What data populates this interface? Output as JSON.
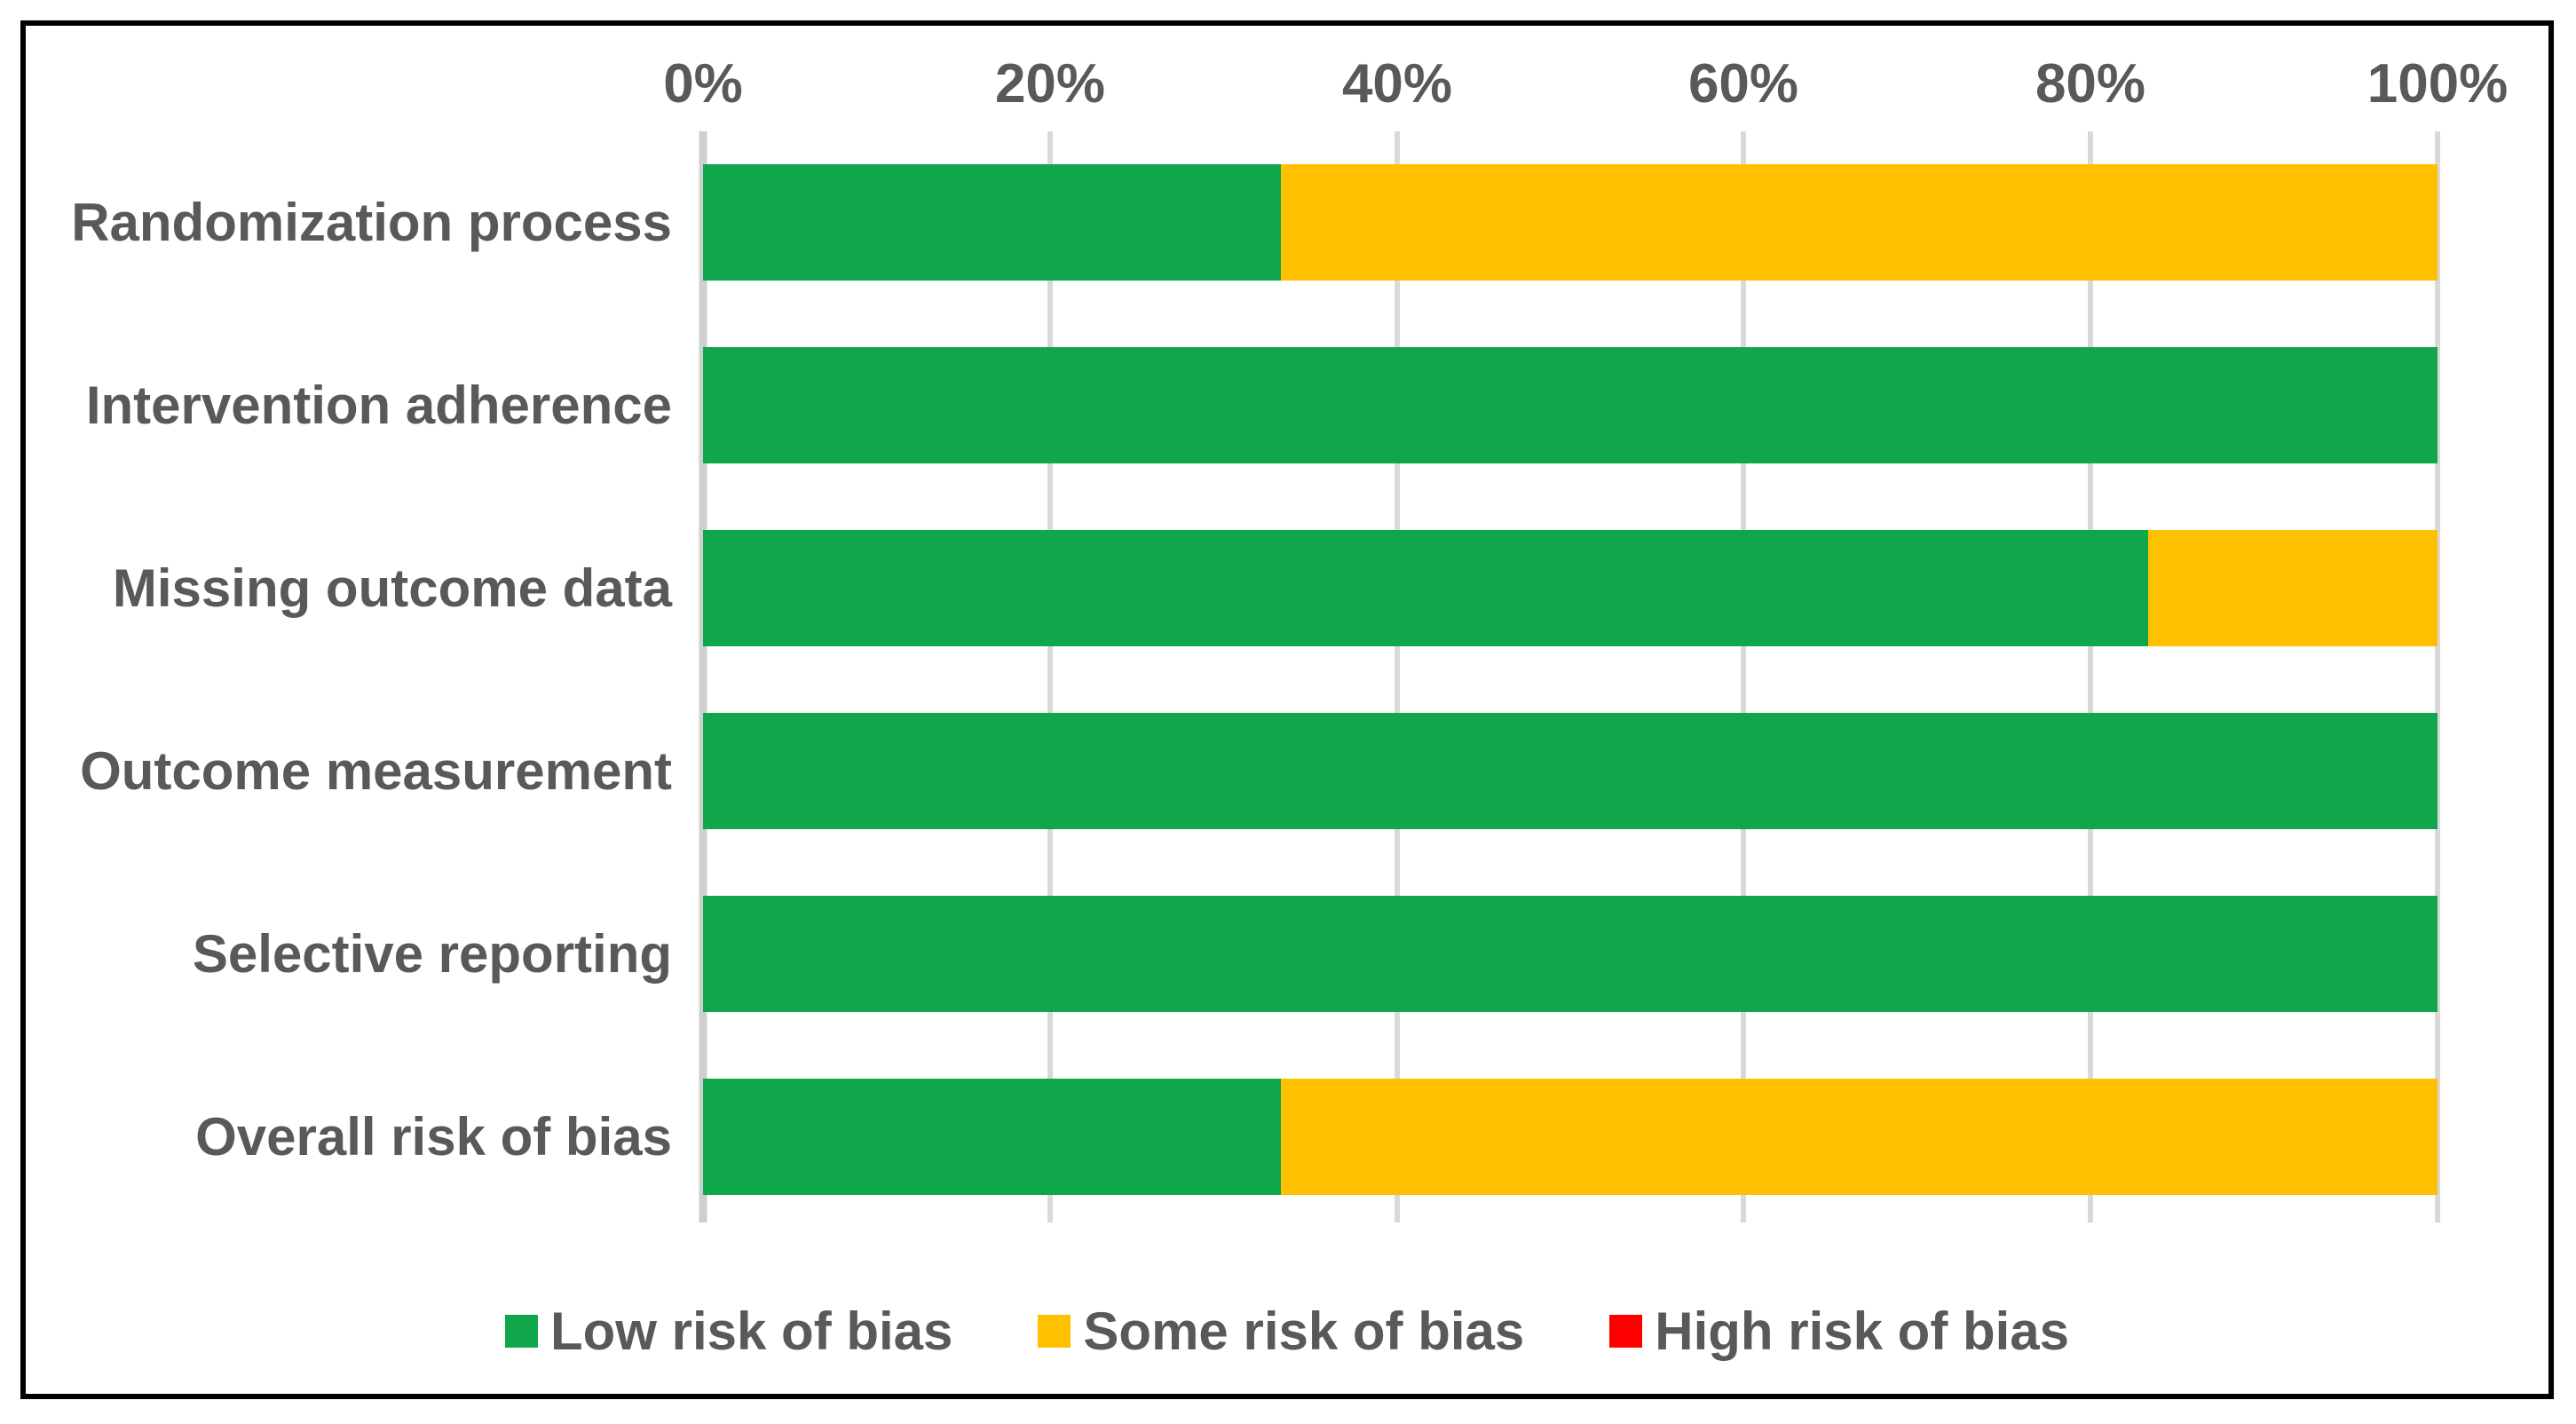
{
  "colors": {
    "low": "#10a64c",
    "some": "#ffc000",
    "high": "#ff0000",
    "grid": "#d9d9d9",
    "axis_text": "#595959",
    "border": "#000000",
    "background": "#ffffff"
  },
  "chart_data": {
    "type": "bar",
    "subtype": "horizontal-stacked-percent",
    "title": "",
    "xlabel": "",
    "ylabel": "",
    "x_range": [
      0,
      100
    ],
    "grid": true,
    "axis_position": "top",
    "x_ticks": [
      "0%",
      "20%",
      "40%",
      "60%",
      "80%",
      "100%"
    ],
    "categories": [
      "Randomization process",
      "Intervention adherence",
      "Missing outcome data",
      "Outcome measurement",
      "Selective reporting",
      "Overall risk of bias"
    ],
    "series": [
      {
        "name": "Low risk of bias",
        "color": "#10a64c",
        "values": [
          33.3,
          100,
          83.3,
          100,
          100,
          33.3
        ]
      },
      {
        "name": "Some risk of bias",
        "color": "#ffc000",
        "values": [
          66.7,
          0,
          16.7,
          0,
          0,
          66.7
        ]
      },
      {
        "name": "High risk of bias",
        "color": "#ff0000",
        "values": [
          0,
          0,
          0,
          0,
          0,
          0
        ]
      }
    ],
    "legend_position": "bottom"
  },
  "legend": {
    "entries": [
      {
        "label": "Low risk of bias",
        "marker": "low-risk-swatch"
      },
      {
        "label": "Some risk of bias",
        "marker": "some-risk-swatch"
      },
      {
        "label": "High risk of bias",
        "marker": "high-risk-swatch"
      }
    ]
  }
}
